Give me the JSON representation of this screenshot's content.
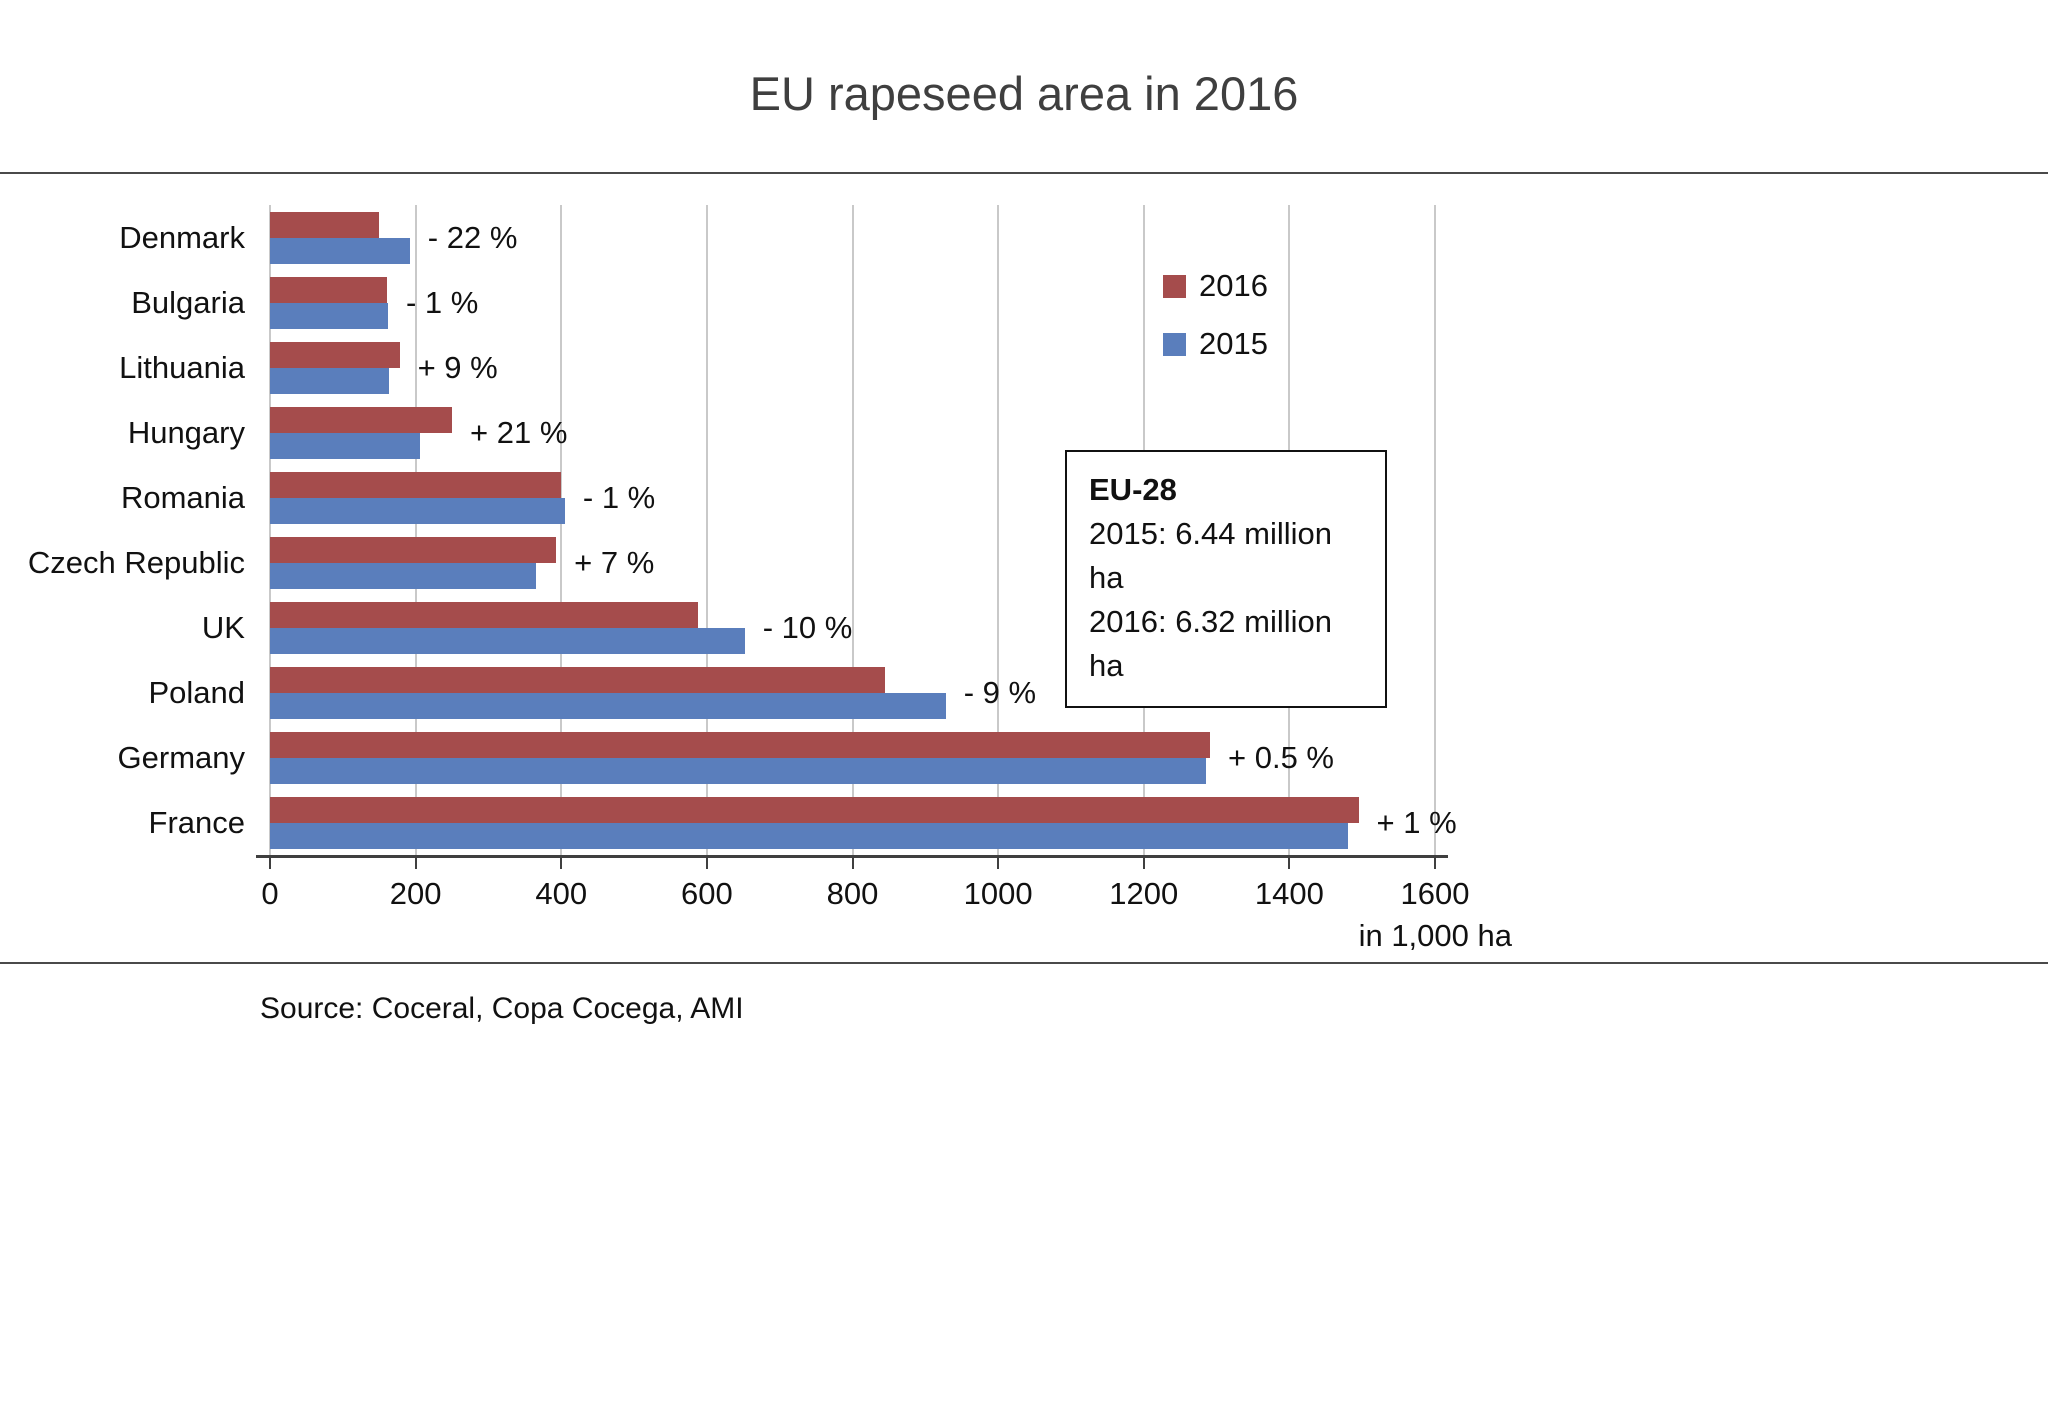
{
  "title": "EU rapeseed area in 2016",
  "axis_unit": "in 1,000 ha",
  "source": "Source: Coceral, Copa Cocega, AMI",
  "annotation": {
    "heading": "EU-28",
    "lines": [
      "2015: 6.44 million ha",
      "2016: 6.32 million ha"
    ]
  },
  "legend": [
    {
      "label": "2016",
      "color": "#a54c4c"
    },
    {
      "label": "2015",
      "color": "#5a7ebc"
    }
  ],
  "colors": {
    "bar_2016": "#a54c4c",
    "bar_2015": "#5a7ebc",
    "gridline": "#c9c9c9",
    "axis": "#3f3f3f"
  },
  "chart_data": {
    "type": "bar",
    "orientation": "horizontal",
    "title": "EU rapeseed area in 2016",
    "xlabel": "in 1,000 ha",
    "xlim": [
      0,
      1600
    ],
    "xticks": [
      0,
      200,
      400,
      600,
      800,
      1000,
      1200,
      1400,
      1600
    ],
    "grid": true,
    "legend_position": "upper right",
    "categories": [
      "Denmark",
      "Bulgaria",
      "Lithuania",
      "Hungary",
      "Romania",
      "Czech Republic",
      "UK",
      "Poland",
      "Germany",
      "France"
    ],
    "series": [
      {
        "name": "2016",
        "color": "#a54c4c",
        "values": [
          150,
          160,
          178,
          250,
          400,
          393,
          588,
          845,
          1291,
          1495
        ]
      },
      {
        "name": "2015",
        "color": "#5a7ebc",
        "values": [
          192,
          162,
          163,
          206,
          405,
          366,
          652,
          928,
          1285,
          1480
        ]
      }
    ],
    "change_labels": [
      "- 22 %",
      "- 1 %",
      "+ 9 %",
      "+ 21 %",
      "- 1 %",
      "+ 7 %",
      "- 10 %",
      "- 9 %",
      "+ 0.5 %",
      "+ 1 %"
    ]
  }
}
